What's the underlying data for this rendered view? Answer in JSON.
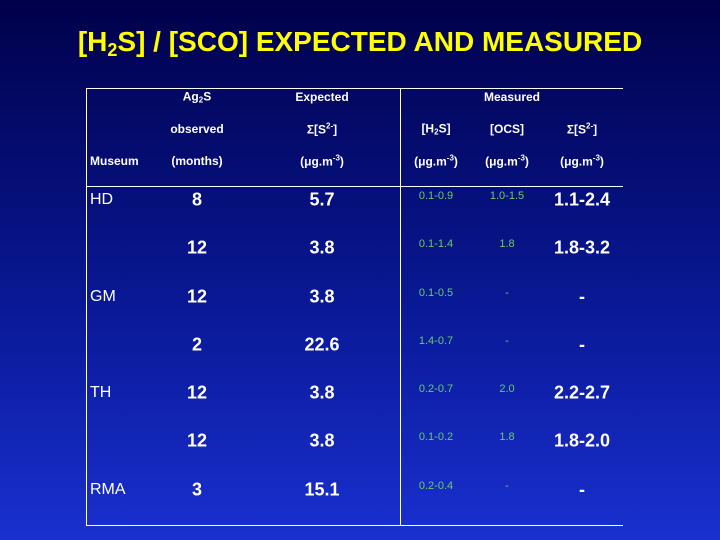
{
  "title": [
    "[H",
    "2",
    "S] / [SCO] EXPECTED AND MEASURED"
  ],
  "table": {
    "header": {
      "ag2s": [
        "Ag",
        "2",
        "S"
      ],
      "expected": "Expected",
      "measured": "Measured",
      "observed": "observed",
      "sum_s2_expected": [
        "Σ[S",
        "2-",
        "]"
      ],
      "h2s": [
        "[H",
        "2",
        "S]"
      ],
      "ocs": "[OCS]",
      "sum_s2_measured": [
        "Σ[S",
        "2-",
        "]"
      ],
      "museum": "Museum",
      "months": "(months)",
      "units": [
        [
          "(μg.m",
          "-3",
          ")"
        ],
        [
          "(μg.m",
          "-3",
          ")"
        ],
        [
          "(μg.m",
          "-3",
          ")"
        ],
        [
          "(μg.m",
          "-3",
          ")"
        ]
      ]
    },
    "rows": [
      [
        "HD",
        "8",
        "5.7",
        "0.1-0.9",
        "1.0-1.5",
        "1.1-2.4"
      ],
      [
        null,
        "12",
        "3.8",
        "0.1-1.4",
        "1.8",
        "1.8-3.2"
      ],
      [
        "GM",
        "12",
        "3.8",
        "0.1-0.5",
        "-",
        "-"
      ],
      [
        null,
        "2",
        "22.6",
        "1.4-0.7",
        "-",
        "-"
      ],
      [
        "TH",
        "12",
        "3.8",
        "0.2-0.7",
        "2.0",
        "2.2-2.7"
      ],
      [
        null,
        "12",
        "3.8",
        "0.1-0.2",
        "1.8",
        "1.8-2.0"
      ],
      [
        "RMA",
        "3",
        "15.1",
        "0.2-0.4",
        "-",
        "-"
      ]
    ]
  }
}
